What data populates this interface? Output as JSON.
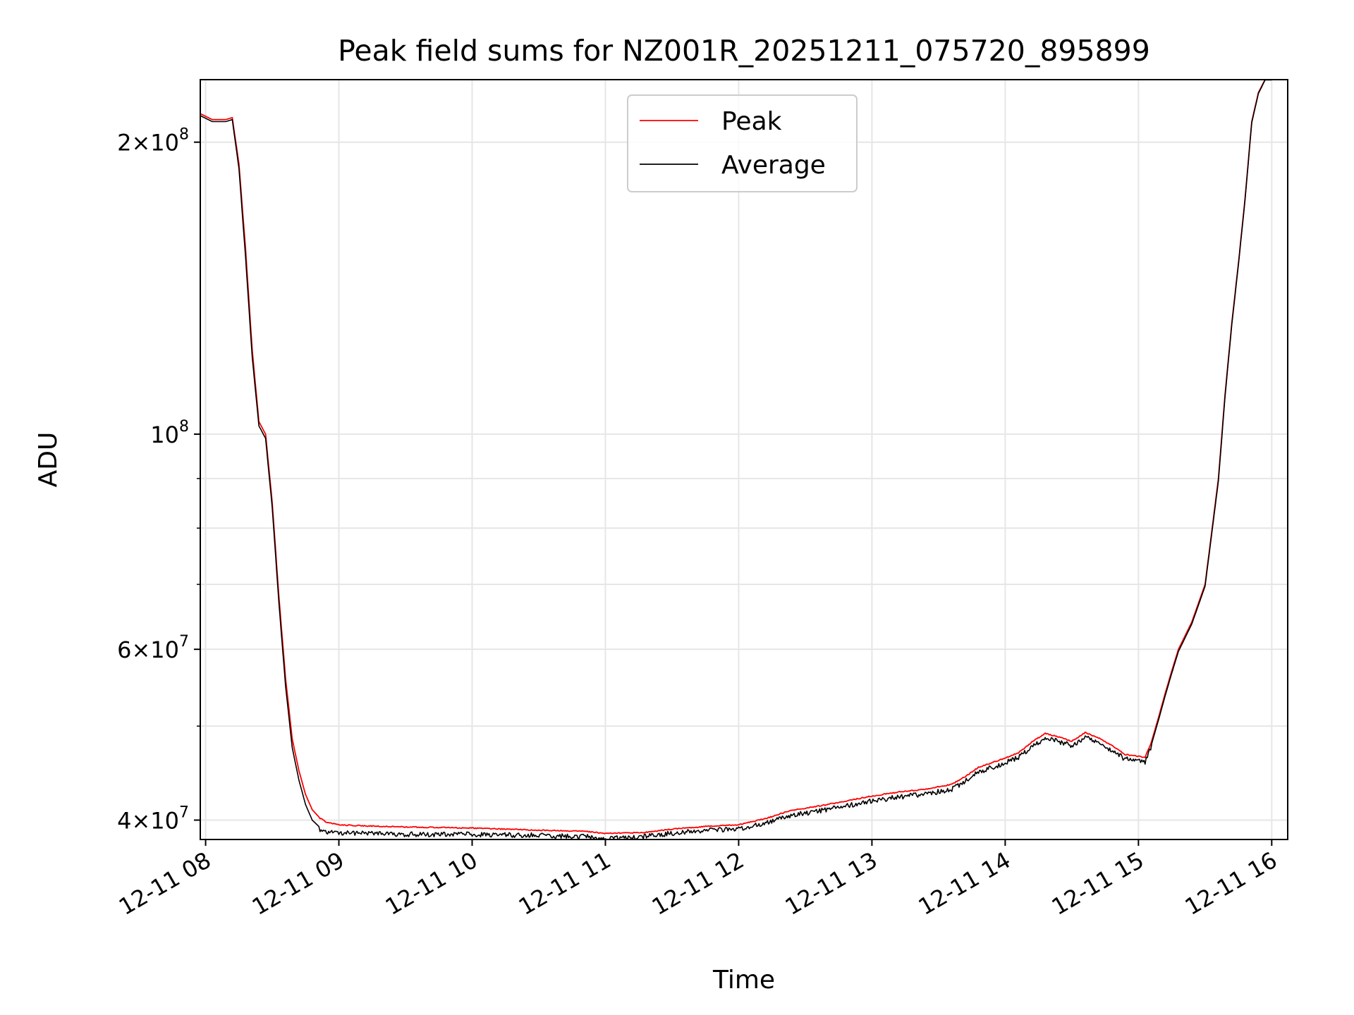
{
  "chart_data": {
    "type": "line",
    "title": "Peak field sums for NZ001R_20251211_075720_895899",
    "xlabel": "Time",
    "ylabel": "ADU",
    "yscale": "log",
    "ylim": [
      38200000,
      232000000
    ],
    "xlim": [
      7.96,
      16.12
    ],
    "grid": true,
    "legend_position": "top-center",
    "x_ticks": [
      {
        "value": 8,
        "label": "12-11 08"
      },
      {
        "value": 9,
        "label": "12-11 09"
      },
      {
        "value": 10,
        "label": "12-11 10"
      },
      {
        "value": 11,
        "label": "12-11 11"
      },
      {
        "value": 12,
        "label": "12-11 12"
      },
      {
        "value": 13,
        "label": "12-11 13"
      },
      {
        "value": 14,
        "label": "12-11 14"
      },
      {
        "value": 15,
        "label": "12-11 15"
      },
      {
        "value": 16,
        "label": "12-11 16"
      }
    ],
    "y_ticks": [
      {
        "value": 40000000,
        "mantissa": "4",
        "exponent": "7"
      },
      {
        "value": 60000000,
        "mantissa": "6",
        "exponent": "7"
      },
      {
        "value": 100000000,
        "mantissa": "",
        "exponent": "8"
      },
      {
        "value": 200000000,
        "mantissa": "2",
        "exponent": "8"
      }
    ],
    "y_minor_ticks": [
      50000000,
      70000000,
      80000000,
      90000000
    ],
    "x": [
      7.96,
      8.05,
      8.15,
      8.2,
      8.25,
      8.3,
      8.35,
      8.4,
      8.45,
      8.5,
      8.55,
      8.6,
      8.65,
      8.7,
      8.75,
      8.8,
      8.85,
      8.9,
      9.0,
      9.2,
      9.5,
      10.0,
      10.5,
      10.85,
      11.0,
      11.3,
      11.5,
      11.8,
      12.0,
      12.2,
      12.4,
      12.6,
      12.8,
      13.0,
      13.2,
      13.4,
      13.6,
      13.7,
      13.8,
      14.0,
      14.1,
      14.2,
      14.3,
      14.4,
      14.5,
      14.6,
      14.7,
      14.8,
      14.9,
      15.0,
      15.05,
      15.1,
      15.15,
      15.2,
      15.25,
      15.3,
      15.4,
      15.5,
      15.6,
      15.65,
      15.7,
      15.75,
      15.8,
      15.85,
      15.9,
      15.95,
      16.0
    ],
    "series": [
      {
        "name": "Peak",
        "color": "#ff0000",
        "values": [
          214000000,
          211000000,
          211000000,
          212000000,
          190000000,
          155000000,
          122000000,
          103000000,
          100000000,
          85000000,
          68000000,
          56000000,
          48500000,
          45000000,
          42500000,
          41000000,
          40300000,
          39900000,
          39600000,
          39500000,
          39400000,
          39300000,
          39100000,
          39000000,
          38800000,
          38900000,
          39200000,
          39500000,
          39600000,
          40200000,
          41000000,
          41400000,
          41900000,
          42400000,
          42800000,
          43100000,
          43600000,
          44400000,
          45400000,
          46400000,
          47000000,
          48200000,
          49200000,
          48800000,
          48300000,
          49300000,
          48700000,
          47800000,
          46800000,
          46600000,
          46500000,
          48300000,
          51000000,
          54000000,
          57000000,
          60000000,
          64000000,
          70000000,
          90000000,
          110000000,
          130000000,
          150000000,
          175000000,
          210000000,
          225000000,
          232000000,
          232000000
        ]
      },
      {
        "name": "Average",
        "color": "#000000",
        "values": [
          213000000,
          210000000,
          210000000,
          211000000,
          188000000,
          152000000,
          120000000,
          102000000,
          99000000,
          84000000,
          67000000,
          55000000,
          47500000,
          44000000,
          41500000,
          40000000,
          39400000,
          39100000,
          39000000,
          39000000,
          38900000,
          38900000,
          38800000,
          38700000,
          38500000,
          38700000,
          39000000,
          39300000,
          39400000,
          39900000,
          40700000,
          41100000,
          41600000,
          42100000,
          42500000,
          42800000,
          43300000,
          44100000,
          45100000,
          46100000,
          46700000,
          47900000,
          48900000,
          48500000,
          48000000,
          49000000,
          48400000,
          47500000,
          46500000,
          46300000,
          46200000,
          48000000,
          50700000,
          53700000,
          56700000,
          59700000,
          63700000,
          69700000,
          89500000,
          109500000,
          129500000,
          149500000,
          174500000,
          209500000,
          224500000,
          231800000,
          231800000
        ]
      }
    ]
  }
}
